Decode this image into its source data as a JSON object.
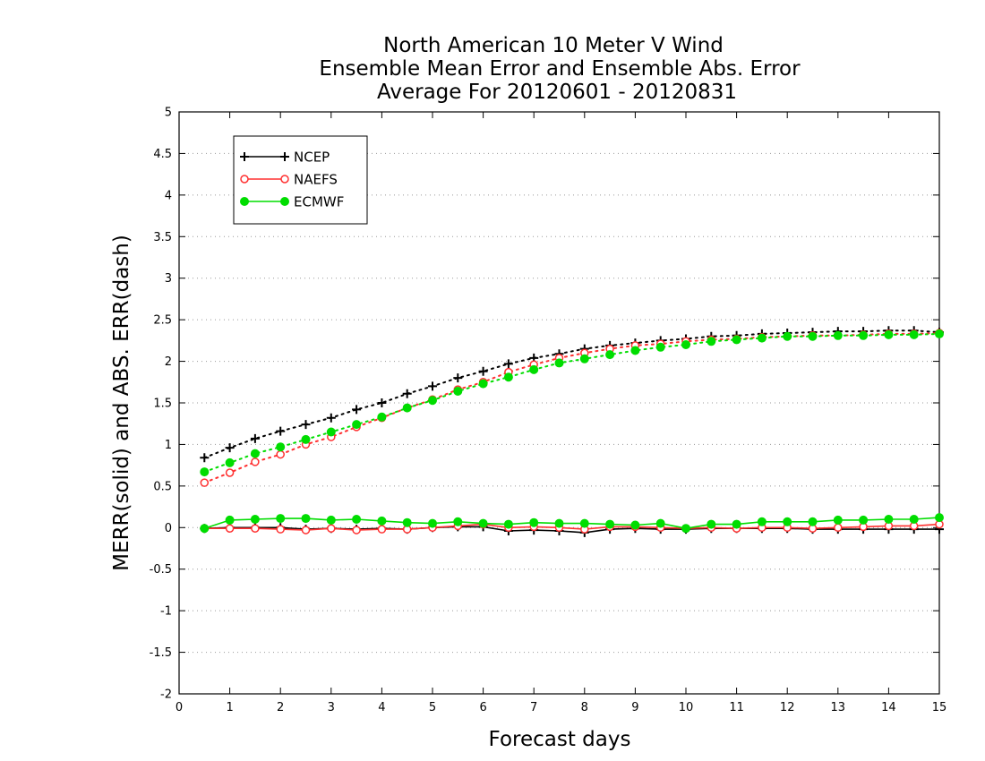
{
  "chart_data": {
    "type": "line",
    "title_lines": [
      "North American 10 Meter V Wind",
      "Ensemble Mean Error and Ensemble Abs. Error",
      "Average For 20120601 - 20120831"
    ],
    "xlabel": "Forecast days",
    "ylabel": "MERR(solid) and ABS. ERR(dash)",
    "xlim": [
      0,
      15
    ],
    "ylim": [
      -2,
      5
    ],
    "x_ticks": [
      "0",
      "1",
      "2",
      "3",
      "4",
      "5",
      "6",
      "7",
      "8",
      "9",
      "10",
      "11",
      "12",
      "13",
      "14",
      "15"
    ],
    "y_ticks": [
      "-2",
      "-1.5",
      "-1",
      "-0.5",
      "0",
      "0.5",
      "1",
      "1.5",
      "2",
      "2.5",
      "3",
      "3.5",
      "4",
      "4.5",
      "5"
    ],
    "grid": "horizontal dotted",
    "legend_position": "top-left",
    "x": [
      0.5,
      1,
      1.5,
      2,
      2.5,
      3,
      3.5,
      4,
      4.5,
      5,
      5.5,
      6,
      6.5,
      7,
      7.5,
      8,
      8.5,
      9,
      9.5,
      10,
      10.5,
      11,
      11.5,
      12,
      12.5,
      13,
      13.5,
      14,
      14.5,
      15
    ],
    "series": [
      {
        "name": "NCEP",
        "color": "#000000",
        "marker": "plus",
        "merr": [
          -0.01,
          0.0,
          0.0,
          0.0,
          -0.02,
          -0.01,
          -0.02,
          -0.01,
          -0.02,
          0.0,
          0.01,
          0.01,
          -0.04,
          -0.03,
          -0.04,
          -0.06,
          -0.02,
          -0.01,
          -0.02,
          -0.02,
          -0.01,
          -0.01,
          -0.01,
          -0.01,
          -0.02,
          -0.02,
          -0.02,
          -0.02,
          -0.02,
          -0.02
        ],
        "abs_err": [
          0.84,
          0.96,
          1.07,
          1.16,
          1.24,
          1.32,
          1.42,
          1.5,
          1.61,
          1.7,
          1.8,
          1.88,
          1.97,
          2.04,
          2.09,
          2.15,
          2.19,
          2.22,
          2.25,
          2.27,
          2.3,
          2.31,
          2.33,
          2.34,
          2.35,
          2.36,
          2.36,
          2.37,
          2.37,
          2.35
        ]
      },
      {
        "name": "NAEFS",
        "color": "#ff3030",
        "marker": "open-circle",
        "merr": [
          -0.01,
          -0.01,
          -0.01,
          -0.02,
          -0.03,
          -0.01,
          -0.03,
          -0.02,
          -0.02,
          0.0,
          0.02,
          0.04,
          0.0,
          0.01,
          0.0,
          -0.02,
          0.01,
          0.01,
          0.0,
          -0.01,
          0.0,
          -0.01,
          0.0,
          0.0,
          -0.01,
          0.0,
          0.01,
          0.02,
          0.02,
          0.04
        ],
        "abs_err": [
          0.54,
          0.66,
          0.79,
          0.88,
          1.0,
          1.09,
          1.21,
          1.32,
          1.44,
          1.54,
          1.66,
          1.75,
          1.87,
          1.96,
          2.04,
          2.1,
          2.15,
          2.19,
          2.21,
          2.24,
          2.26,
          2.27,
          2.29,
          2.3,
          2.31,
          2.31,
          2.32,
          2.33,
          2.33,
          2.34
        ]
      },
      {
        "name": "ECMWF",
        "color": "#00dd00",
        "marker": "filled-circle",
        "merr": [
          -0.01,
          0.09,
          0.1,
          0.11,
          0.11,
          0.09,
          0.1,
          0.08,
          0.06,
          0.05,
          0.07,
          0.05,
          0.04,
          0.06,
          0.05,
          0.05,
          0.04,
          0.03,
          0.05,
          -0.01,
          0.04,
          0.04,
          0.07,
          0.07,
          0.07,
          0.09,
          0.09,
          0.1,
          0.1,
          0.12
        ],
        "abs_err": [
          0.67,
          0.78,
          0.89,
          0.97,
          1.06,
          1.15,
          1.24,
          1.33,
          1.44,
          1.53,
          1.64,
          1.73,
          1.81,
          1.9,
          1.98,
          2.03,
          2.08,
          2.13,
          2.17,
          2.2,
          2.24,
          2.26,
          2.28,
          2.3,
          2.3,
          2.31,
          2.31,
          2.32,
          2.32,
          2.33
        ]
      }
    ]
  }
}
